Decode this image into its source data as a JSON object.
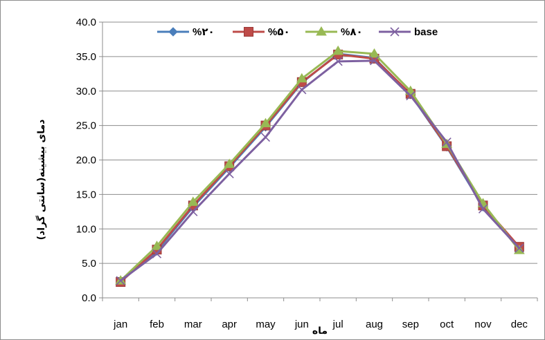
{
  "chart_data": {
    "type": "line",
    "title": "",
    "xlabel": "ماه",
    "ylabel": "دمای بیشینه(سانتی گراد)",
    "categories": [
      "jan",
      "feb",
      "mar",
      "apr",
      "may",
      "jun",
      "jul",
      "aug",
      "sep",
      "oct",
      "nov",
      "dec"
    ],
    "ylim": [
      0,
      40
    ],
    "yticks": [
      "0.0",
      "5.0",
      "10.0",
      "15.0",
      "20.0",
      "25.0",
      "30.0",
      "35.0",
      "40.0"
    ],
    "grid": true,
    "legend_position": "top",
    "series": [
      {
        "name": "%۲۰",
        "color": "#4a7ebb",
        "marker": "diamond",
        "values": [
          2.4,
          6.8,
          13.2,
          18.9,
          24.8,
          31.2,
          35.4,
          34.8,
          29.5,
          21.9,
          13.2,
          7.1
        ]
      },
      {
        "name": "%۵۰",
        "color": "#be4b48",
        "marker": "square",
        "values": [
          2.3,
          7.0,
          13.4,
          19.1,
          25.0,
          31.3,
          35.3,
          34.7,
          29.6,
          22.0,
          13.4,
          7.4
        ]
      },
      {
        "name": "%۸۰",
        "color": "#98b954",
        "marker": "triangle",
        "values": [
          2.5,
          7.5,
          13.9,
          19.4,
          25.3,
          31.8,
          35.8,
          35.4,
          30.0,
          22.3,
          13.7,
          6.9
        ]
      },
      {
        "name": "base",
        "color": "#7d60a0",
        "marker": "x",
        "values": [
          2.5,
          6.4,
          12.5,
          18.0,
          23.3,
          30.2,
          34.3,
          34.4,
          29.3,
          22.6,
          12.9,
          7.2
        ]
      }
    ]
  }
}
